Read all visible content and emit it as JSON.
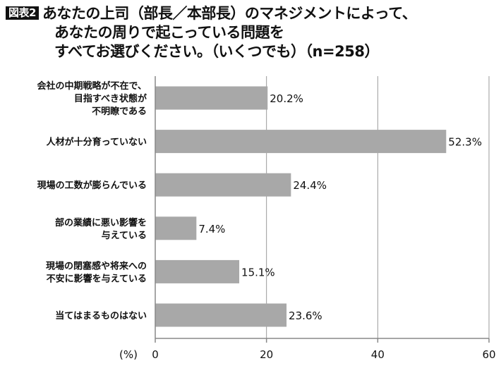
{
  "figure_label": "図表2",
  "title_lines": [
    "あなたの上司（部長／本部長）のマネジメントによって、",
    "あなたの周りで起こっている問題を",
    "すべてお選びください。（いくつでも）（n=258）"
  ],
  "colors": {
    "bar": "#a8a8a8",
    "axis": "#888888",
    "grid": "#9a9a9a",
    "badge": "#111111"
  },
  "chart_data": {
    "type": "bar",
    "orientation": "horizontal",
    "categories": [
      [
        "会社の中期戦略が不在で、",
        "目指すべき状態が",
        "不明瞭である"
      ],
      [
        "人材が十分育っていない"
      ],
      [
        "現場の工数が膨らんでいる"
      ],
      [
        "部の業績に悪い影響を",
        "与えている"
      ],
      [
        "現場の閉塞感や将来への",
        "不安に影響を与えている"
      ],
      [
        "当てはまるものはない"
      ]
    ],
    "values": [
      20.2,
      52.3,
      24.4,
      7.4,
      15.1,
      23.6
    ],
    "value_labels": [
      "20.2%",
      "52.3%",
      "24.4%",
      "7.4%",
      "15.1%",
      "23.6%"
    ],
    "xlim": [
      0,
      60
    ],
    "xticks": [
      0,
      20,
      40,
      60
    ],
    "unit_label": "(%)",
    "grid": true
  }
}
